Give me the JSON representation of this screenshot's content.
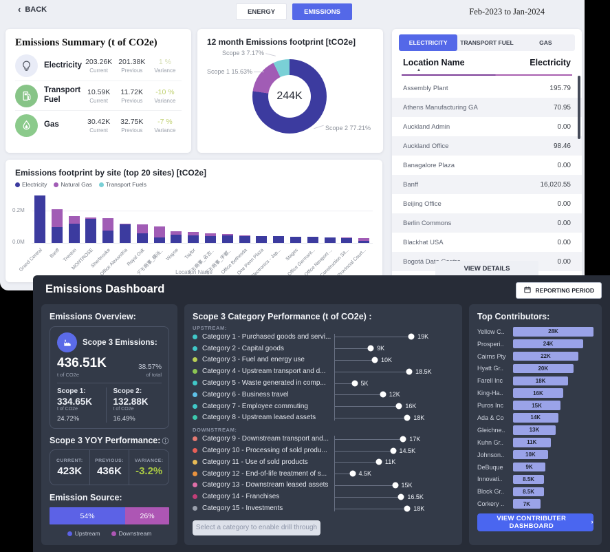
{
  "header": {
    "back_label": "BACK",
    "tabs": [
      "ENERGY",
      "EMISSIONS"
    ],
    "active_tab": "EMISSIONS",
    "date_range": "Feb-2023 to Jan-2024"
  },
  "summary": {
    "title": "Emissions Summary (t of CO2e)",
    "col_labels": {
      "current": "Current",
      "previous": "Previous",
      "variance": "Variance"
    },
    "rows": [
      {
        "name": "Electricity",
        "icon": "lightbulb-icon",
        "current": "203.26K",
        "previous": "201.38K",
        "variance": "1 %",
        "variance_color": "#d6deb4"
      },
      {
        "name": "Transport Fuel",
        "icon": "fuel-pump-icon",
        "current": "10.59K",
        "previous": "11.72K",
        "variance": "-10 %",
        "variance_color": "#bfd06e"
      },
      {
        "name": "Gas",
        "icon": "gas-flame-icon",
        "current": "30.42K",
        "previous": "32.75K",
        "variance": "-7 %",
        "variance_color": "#bfd06e"
      }
    ]
  },
  "site_table": {
    "tabs": [
      "ELECTRICITY",
      "TRANSPORT FUEL",
      "GAS"
    ],
    "active_tab": "ELECTRICITY",
    "columns": [
      "Location Name",
      "Electricity"
    ],
    "sort_icon": "▲",
    "rows": [
      {
        "name": "Assembly Plant",
        "value": "195.79"
      },
      {
        "name": "Athens Manufacturing GA",
        "value": "70.95"
      },
      {
        "name": "Auckland Admin",
        "value": "0.00"
      },
      {
        "name": "Auckland Office",
        "value": "98.46"
      },
      {
        "name": "Banagalore Plaza",
        "value": "0.00"
      },
      {
        "name": "Banff",
        "value": "16,020.55"
      },
      {
        "name": "Beijing Office",
        "value": "0.00"
      },
      {
        "name": "Berlin Commons",
        "value": "0.00"
      },
      {
        "name": "Blackhat USA",
        "value": "0.00"
      },
      {
        "name": "Bogotá Data Centre",
        "value": "0.00"
      }
    ],
    "view_details_label": "VIEW DETAILS"
  },
  "dark_dashboard": {
    "title": "Emissions Dashboard",
    "reporting_period_label": "REPORTING PERIOD",
    "overview": {
      "heading": "Emissions Overview:",
      "scope3_label": "Scope 3 Emissions:",
      "scope3_value": "436.51K",
      "scope3_unit": "t of CO2e",
      "scope3_pct": "38.57%",
      "scope3_pct_label": "of total",
      "scope1": {
        "label": "Scope 1:",
        "value": "334.65K",
        "unit": "t of CO2e",
        "pct": "24.72%"
      },
      "scope2": {
        "label": "Scope 2:",
        "value": "132.88K",
        "unit": "t of CO2e",
        "pct": "16.49%"
      }
    },
    "yoy": {
      "heading": "Scope 3 YOY Performance:",
      "cols": [
        {
          "label": "CURRENT:",
          "value": "423K",
          "color": "#f2f4f8"
        },
        {
          "label": "PREVIOUS:",
          "value": "436K",
          "color": "#f2f4f8"
        },
        {
          "label": "VARIANCE:",
          "value": "-3.2%",
          "color": "#a9c943"
        }
      ]
    },
    "source": {
      "heading": "Emission Source:"
    },
    "categories": {
      "title": "Scope 3 Category Performance (t of CO2e) :",
      "upstream_label": "UPSTREAM:",
      "downstream_label": "DOWNSTREAM:",
      "drill_button_label": "Select a category to enable drill through"
    },
    "contributors": {
      "title": "Top Contributors:",
      "button_label": "VIEW CONTRIBUTER DASHBOARD",
      "button_chevron": "›"
    }
  },
  "chart_data": [
    {
      "id": "emissions-footprint-donut",
      "type": "pie",
      "title": "12 month Emissions footprint [tCO2e]",
      "center_label": "244K",
      "slices": [
        {
          "label": "Scope 2",
          "pct": 77.21,
          "color": "#3c3b9f",
          "callout": "br"
        },
        {
          "label": "Scope 1",
          "pct": 15.63,
          "color": "#a15cb5",
          "callout": "left"
        },
        {
          "label": "Scope 3",
          "pct": 7.17,
          "color": "#7ad0d6",
          "callout": "top"
        }
      ],
      "legend_position": "callout-labels"
    },
    {
      "id": "site-emissions-bar",
      "type": "bar",
      "stacked": true,
      "title": "Emissions footprint by site (top 20 sites) [tCO2e]",
      "xlabel": "Location Name",
      "ylabel": "",
      "yticks": [
        "0.0M",
        "0.2M"
      ],
      "ylim": [
        0,
        0.3
      ],
      "unit": "M tCO2e",
      "categories": [
        "Grand Central",
        "Banff",
        "Trenton",
        "MONTROSE",
        "Sherbrooke",
        "Office Alexandria",
        "Royal Oak",
        "デモ商事_横浜..",
        "Wayne",
        "Taylor",
        "デモ商事_名古..",
        "デモ商事_宇都..",
        "Office Bethesda",
        "One Penn Plaza",
        "Electronics - Jap...",
        "Stages",
        "Office Germant...",
        "Office Newport ...",
        "Construction Sit...",
        "Provincial Court..."
      ],
      "series": [
        {
          "name": "Electricity",
          "color": "#3c3b9f",
          "values": [
            0.288,
            0.095,
            0.118,
            0.148,
            0.076,
            0.114,
            0.06,
            0.032,
            0.05,
            0.047,
            0.042,
            0.045,
            0.043,
            0.04,
            0.04,
            0.038,
            0.036,
            0.035,
            0.03,
            0.013
          ]
        },
        {
          "name": "Natural Gas",
          "color": "#a15cb5",
          "values": [
            0,
            0.11,
            0.044,
            0.006,
            0.074,
            0.004,
            0.054,
            0.068,
            0.022,
            0.02,
            0.015,
            0.008,
            0.002,
            0,
            0,
            0,
            0,
            0,
            0.003,
            0.015
          ]
        },
        {
          "name": "Transport Fuels",
          "color": "#7ad0d6",
          "values": [
            0,
            0,
            0,
            0,
            0,
            0,
            0,
            0,
            0,
            0,
            0,
            0,
            0,
            0,
            0,
            0,
            0,
            0,
            0,
            0.002
          ]
        }
      ],
      "grid": true,
      "legend_position": "top-left"
    },
    {
      "id": "upstream-lollipop",
      "type": "scatter",
      "group": "UPSTREAM",
      "xmax": 20,
      "points": [
        {
          "category": "Category 1 - Purchased goods and servi...",
          "dot_color": "#40c8c8",
          "value": 19,
          "value_label": "19K"
        },
        {
          "category": "Category 2 - Capital goods",
          "dot_color": "#40c8c8",
          "value": 9,
          "value_label": "9K"
        },
        {
          "category": "Category 3 - Fuel and energy use",
          "dot_color": "#b9cf55",
          "value": 10,
          "value_label": "10K"
        },
        {
          "category": "Category 4 - Upstream transport and d...",
          "dot_color": "#8cc653",
          "value": 18.5,
          "value_label": "18.5K"
        },
        {
          "category": "Category 5 - Waste generated in comp...",
          "dot_color": "#40c8c8",
          "value": 5,
          "value_label": "5K"
        },
        {
          "category": "Category 6 - Business travel",
          "dot_color": "#5ec1e8",
          "value": 12,
          "value_label": "12K"
        },
        {
          "category": "Category 7 - Employee commuting",
          "dot_color": "#40c8c8",
          "value": 16,
          "value_label": "16K"
        },
        {
          "category": "Category 8 - Upstream leased assets",
          "dot_color": "#3cc9ad",
          "value": 18,
          "value_label": "18K"
        }
      ]
    },
    {
      "id": "downstream-lollipop",
      "type": "scatter",
      "group": "DOWNSTREAM",
      "xmax": 20,
      "points": [
        {
          "category": "Category 9 - Downstream transport and...",
          "dot_color": "#e57a72",
          "value": 17,
          "value_label": "17K"
        },
        {
          "category": "Category 10 - Processing of sold produ...",
          "dot_color": "#e85f57",
          "value": 14.5,
          "value_label": "14.5K"
        },
        {
          "category": "Category 11 - Use of sold products",
          "dot_color": "#e8bb56",
          "value": 11,
          "value_label": "11K"
        },
        {
          "category": "Category 12 - End-of-life treatment of s...",
          "dot_color": "#e8923e",
          "value": 4.5,
          "value_label": "4.5K"
        },
        {
          "category": "Category 13 - Downstream leased assets",
          "dot_color": "#df6fa8",
          "value": 15,
          "value_label": "15K"
        },
        {
          "category": "Category 14 - Franchises",
          "dot_color": "#c23e78",
          "value": 16.5,
          "value_label": "16.5K"
        },
        {
          "category": "Category 15 - Investments",
          "dot_color": "#9aa0ac",
          "value": 18,
          "value_label": "18K"
        }
      ]
    },
    {
      "id": "top-contributors-bar",
      "type": "bar",
      "orientation": "horizontal",
      "bar_color": "#9aa3e8",
      "xmax": 28,
      "rows": [
        {
          "name": "Yellow C..",
          "value": 28,
          "label": "28K"
        },
        {
          "name": "Prosperi..",
          "value": 24,
          "label": "24K"
        },
        {
          "name": "Cairns Pty",
          "value": 22,
          "label": "22K"
        },
        {
          "name": "Hyatt Gr..",
          "value": 20,
          "label": "20K"
        },
        {
          "name": "Farell Inc",
          "value": 18,
          "label": "18K"
        },
        {
          "name": "King-Ha..",
          "value": 16,
          "label": "16K"
        },
        {
          "name": "Puros Inc",
          "value": 15,
          "label": "15K"
        },
        {
          "name": "Ada & Co",
          "value": 14,
          "label": "14K"
        },
        {
          "name": "Gleichne..",
          "value": 13,
          "label": "13K"
        },
        {
          "name": "Kuhn Gr..",
          "value": 11,
          "label": "11K"
        },
        {
          "name": "Johnson..",
          "value": 10,
          "label": "10K"
        },
        {
          "name": "DeBuque",
          "value": 9,
          "label": "9K"
        },
        {
          "name": "Innovati..",
          "value": 8.5,
          "label": "8.5K"
        },
        {
          "name": "Block Gr..",
          "value": 8.5,
          "label": "8.5K"
        },
        {
          "name": "Corkery ..",
          "value": 7,
          "label": "7K"
        }
      ]
    },
    {
      "id": "emission-source-stacked",
      "type": "bar",
      "stacked": true,
      "orientation": "horizontal",
      "segments": [
        {
          "label": "Upstream",
          "pct": 54,
          "color": "#5c62e6"
        },
        {
          "label": "Downstream",
          "pct": 26,
          "color": "#ad56b4"
        }
      ]
    }
  ]
}
